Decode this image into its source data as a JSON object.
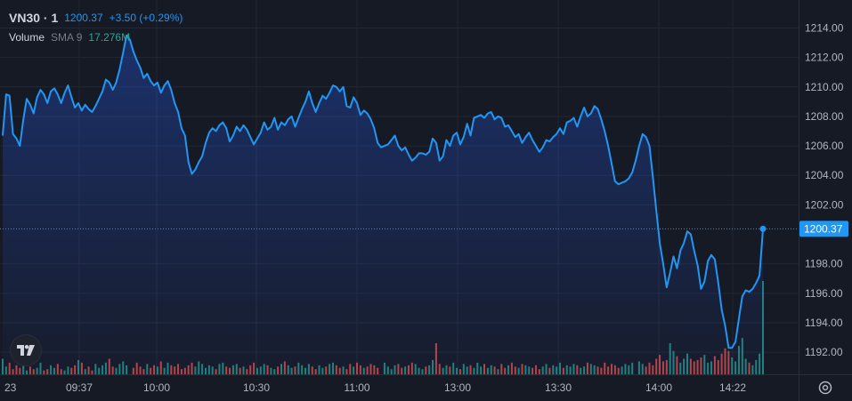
{
  "header": {
    "symbol": "VN30 · 1",
    "price": "1200.37",
    "change": "+3.50 (+0.29%)",
    "volume_label": "Volume",
    "volume_sma": "SMA 9",
    "volume_value": "17.276M"
  },
  "colors": {
    "background": "#161a25",
    "line": "#2196f3",
    "grid": "#232734",
    "volume_up": "#26a69a",
    "volume_down": "#ef5350",
    "price_tag": "#2196f3"
  },
  "icons": {
    "logo": "tradingview-logo-icon",
    "settings": "gear-icon"
  },
  "chart_data": {
    "type": "area",
    "y_ticks": [
      "1214.00",
      "1212.00",
      "1210.00",
      "1208.00",
      "1206.00",
      "1204.00",
      "1202.00",
      "1198.00",
      "1196.00",
      "1194.00",
      "1192.00"
    ],
    "ylim": [
      1190.5,
      1215.9
    ],
    "x_labels": [
      "23",
      "09:37",
      "10:00",
      "10:30",
      "11:00",
      "13:00",
      "13:30",
      "14:00",
      "14:22"
    ],
    "last_price_tag": "1200.37",
    "last_price": 1200.37,
    "price_series": [
      1206.7,
      1209.5,
      1209.4,
      1206.8,
      1206.5,
      1206.0,
      1207.8,
      1209.2,
      1208.8,
      1208.2,
      1209.3,
      1209.8,
      1209.5,
      1208.9,
      1209.7,
      1209.9,
      1209.5,
      1208.9,
      1209.6,
      1210.1,
      1209.3,
      1208.6,
      1208.9,
      1208.4,
      1208.8,
      1208.5,
      1208.3,
      1208.7,
      1209.2,
      1209.7,
      1210.5,
      1210.3,
      1209.8,
      1210.3,
      1211.2,
      1212.3,
      1213.5,
      1213.2,
      1212.4,
      1211.8,
      1211.3,
      1210.6,
      1210.9,
      1210.4,
      1210.1,
      1210.3,
      1209.6,
      1210.1,
      1210.4,
      1209.8,
      1208.9,
      1208.3,
      1207.2,
      1206.7,
      1204.9,
      1204.1,
      1204.4,
      1204.9,
      1205.3,
      1206.2,
      1206.9,
      1207.2,
      1207.0,
      1207.4,
      1207.6,
      1207.2,
      1206.3,
      1206.7,
      1207.3,
      1207.0,
      1207.4,
      1207.1,
      1206.6,
      1206.1,
      1206.5,
      1206.9,
      1207.6,
      1207.1,
      1207.3,
      1207.9,
      1207.1,
      1207.6,
      1207.4,
      1207.8,
      1208.0,
      1207.3,
      1207.9,
      1208.5,
      1209.0,
      1209.7,
      1208.9,
      1208.3,
      1208.9,
      1209.4,
      1209.2,
      1209.6,
      1210.1,
      1210.0,
      1209.7,
      1210.0,
      1208.7,
      1208.6,
      1209.3,
      1208.9,
      1208.1,
      1208.4,
      1208.2,
      1207.8,
      1207.2,
      1206.2,
      1205.9,
      1206.0,
      1206.1,
      1206.4,
      1206.7,
      1206.0,
      1205.7,
      1205.9,
      1205.4,
      1205.0,
      1205.2,
      1205.5,
      1205.5,
      1205.4,
      1205.6,
      1206.5,
      1206.2,
      1205.0,
      1205.3,
      1206.4,
      1206.0,
      1206.7,
      1206.9,
      1206.1,
      1206.6,
      1207.5,
      1206.7,
      1207.9,
      1208.0,
      1208.1,
      1207.9,
      1208.2,
      1208.3,
      1207.8,
      1208.0,
      1207.9,
      1207.3,
      1207.4,
      1207.0,
      1206.6,
      1206.8,
      1206.2,
      1206.6,
      1206.9,
      1206.4,
      1206.0,
      1205.6,
      1205.9,
      1206.4,
      1206.3,
      1206.6,
      1206.8,
      1207.2,
      1206.8,
      1207.6,
      1207.7,
      1207.9,
      1207.3,
      1208.0,
      1208.6,
      1208.0,
      1208.2,
      1208.7,
      1208.5,
      1207.8,
      1207.0,
      1206.0,
      1204.8,
      1203.6,
      1203.4,
      1203.5,
      1203.6,
      1203.8,
      1204.2,
      1205.0,
      1206.0,
      1206.8,
      1206.6,
      1206.0,
      1203.9,
      1201.6,
      1199.4,
      1198.0,
      1196.4,
      1197.4,
      1198.5,
      1197.7,
      1198.9,
      1199.4,
      1200.2,
      1200.0,
      1198.9,
      1197.9,
      1196.3,
      1196.8,
      1198.2,
      1198.6,
      1198.3,
      1196.7,
      1194.9,
      1193.8,
      1192.3,
      1192.3,
      1192.7,
      1194.3,
      1195.8,
      1196.2,
      1196.1,
      1196.3,
      1196.7,
      1197.2,
      1200.37
    ],
    "volume_series": [
      12,
      6,
      9,
      4,
      7,
      5,
      8,
      3,
      6,
      4,
      5,
      9,
      3,
      4,
      7,
      5,
      8,
      4,
      3,
      6,
      5,
      7,
      11,
      9,
      4,
      6,
      3,
      8,
      5,
      7,
      9,
      12,
      6,
      5,
      8,
      10,
      7,
      5,
      9,
      6,
      4,
      8,
      5,
      7,
      6,
      10,
      5,
      9,
      7,
      6,
      8,
      4,
      5,
      7,
      9,
      6,
      10,
      8,
      5,
      7,
      6,
      4,
      8,
      9,
      6,
      5,
      7,
      8,
      5,
      6,
      4,
      7,
      9,
      5,
      6,
      8,
      7,
      5,
      4,
      6,
      8,
      10,
      7,
      5,
      6,
      9,
      7,
      5,
      8,
      6,
      4,
      7,
      5,
      6,
      8,
      9,
      7,
      5,
      6,
      4,
      8,
      6,
      9,
      7,
      5,
      6,
      8,
      7,
      5,
      9,
      6,
      4,
      7,
      8,
      5,
      6,
      7,
      9,
      8,
      5,
      4,
      6,
      7,
      11,
      24,
      8,
      5,
      7,
      6,
      9,
      5,
      4,
      8,
      6,
      7,
      5,
      9,
      6,
      8,
      5,
      7,
      6,
      4,
      8,
      5,
      7,
      9,
      6,
      5,
      8,
      7,
      6,
      5,
      7,
      4,
      6,
      8,
      5,
      7,
      6,
      9,
      5,
      7,
      6,
      8,
      7,
      5,
      6,
      9,
      8,
      7,
      6,
      5,
      9,
      6,
      8,
      7,
      5,
      6,
      8,
      7,
      9,
      10,
      8,
      6,
      9,
      7,
      12,
      15,
      10,
      11,
      24,
      18,
      14,
      9,
      12,
      16,
      12,
      10,
      11,
      13,
      15,
      9,
      10,
      14,
      11,
      16,
      20,
      18,
      13,
      10,
      22,
      28,
      12,
      9,
      7,
      11,
      16,
      72
    ]
  }
}
